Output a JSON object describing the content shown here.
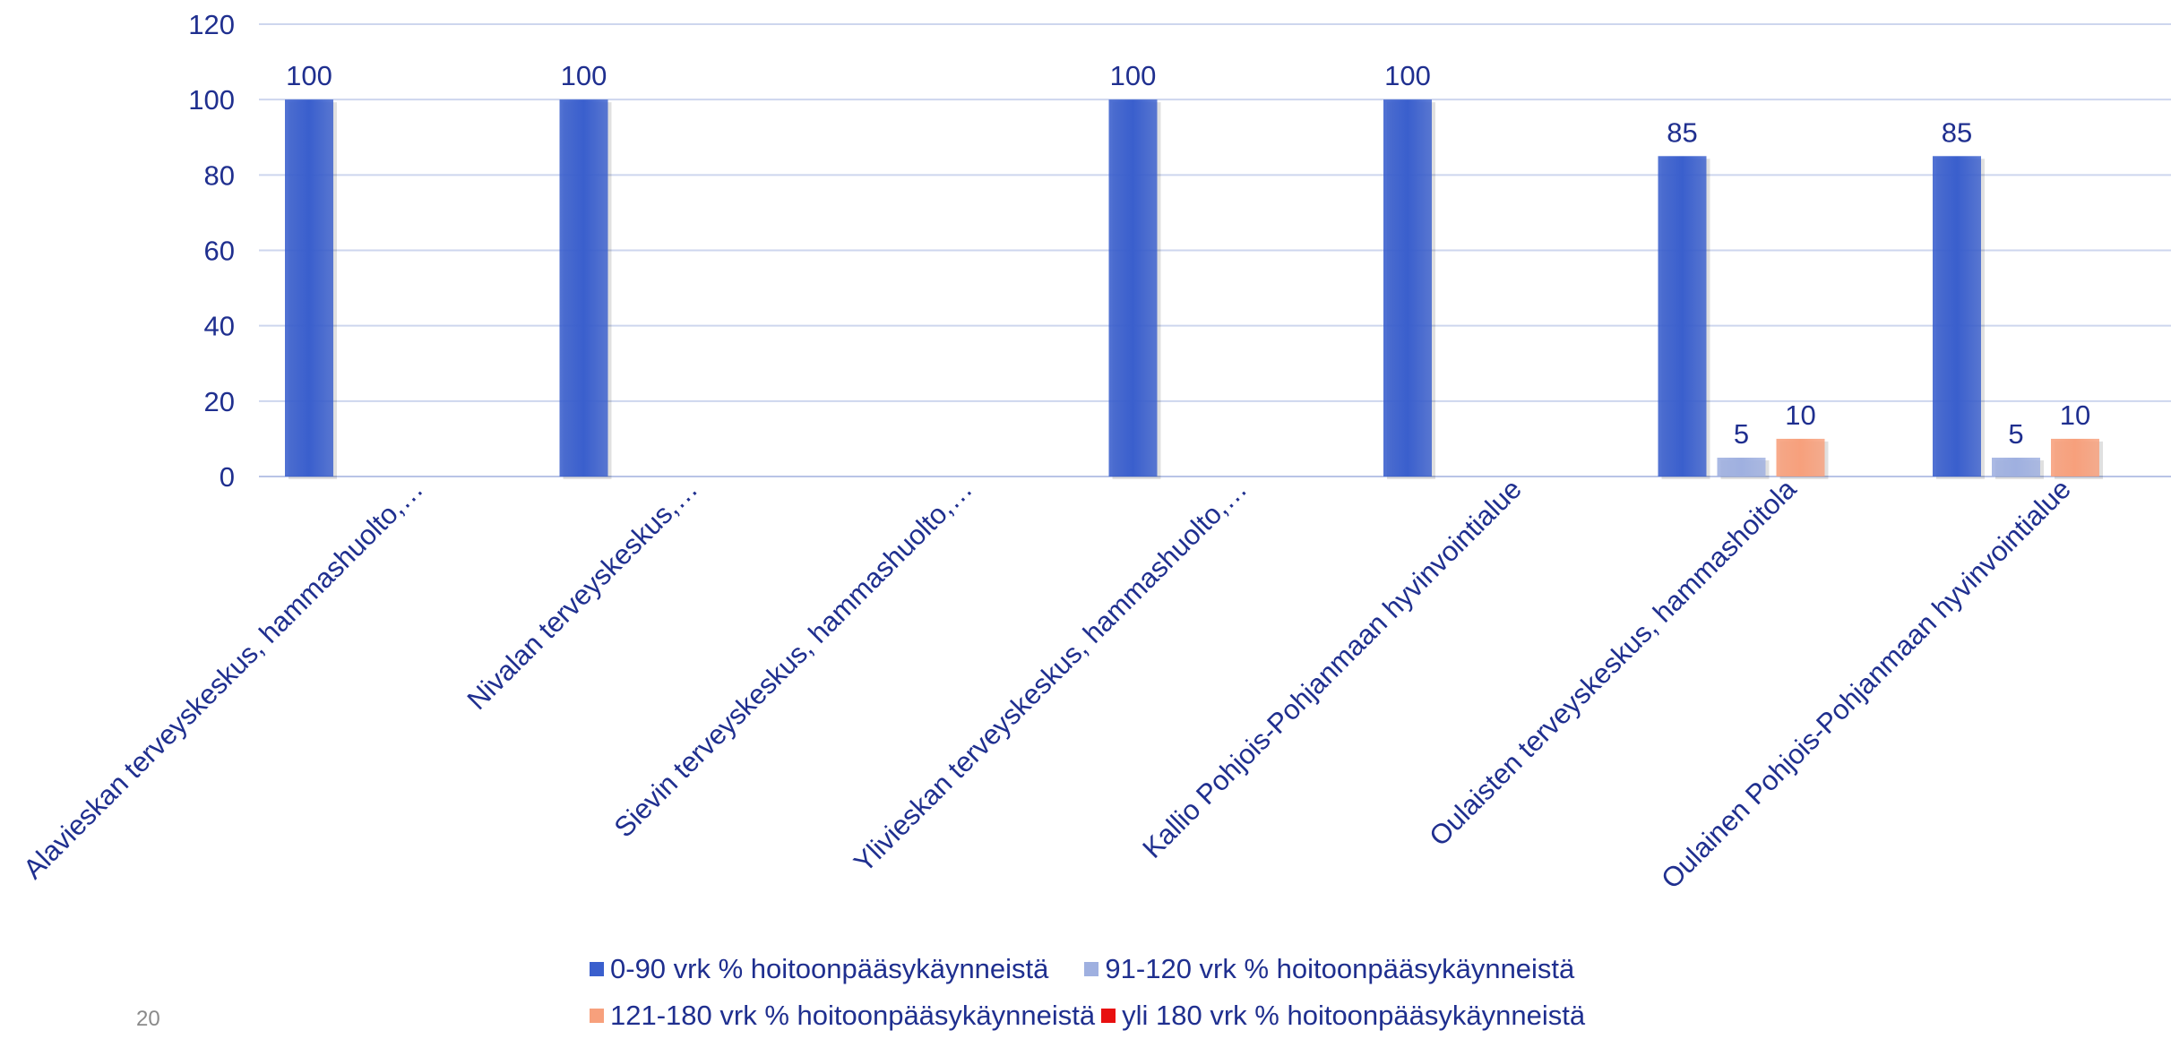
{
  "chart_data": {
    "type": "bar",
    "categories": [
      "Alavieskan terveyskeskus, hammashuolto,…",
      "Nivalan terveyskeskus,…",
      "Sievin terveyskeskus, hammashuolto,…",
      "Ylivieskan terveyskeskus, hammashuolto,…",
      "Kallio Pohjois-Pohjanmaan hyvinvointialue",
      "Oulaisten terveyskeskus, hammashoitola",
      "Oulainen Pohjois-Pohjanmaan hyvinvointialue"
    ],
    "series": [
      {
        "name": "0-90 vrk % hoitoonpääsykäynneistä",
        "color": "#3a5fcd",
        "values": [
          100,
          100,
          null,
          100,
          100,
          85,
          85
        ]
      },
      {
        "name": "91-120 vrk % hoitoonpääsykäynneistä",
        "color": "#9fb0e0",
        "values": [
          null,
          null,
          null,
          null,
          null,
          5,
          5
        ]
      },
      {
        "name": "121-180 vrk % hoitoonpääsykäynneistä",
        "color": "#f7a07c",
        "values": [
          null,
          null,
          null,
          null,
          null,
          10,
          10
        ]
      },
      {
        "name": "yli 180 vrk % hoitoonpääsykäynneistä",
        "color": "#e81010",
        "values": [
          null,
          null,
          null,
          null,
          null,
          null,
          null
        ]
      }
    ],
    "yticks": [
      0,
      20,
      40,
      60,
      80,
      100,
      120
    ],
    "ylim": [
      0,
      120
    ],
    "grid": true,
    "legend_position": "bottom",
    "title": "",
    "xlabel": "",
    "ylabel": ""
  },
  "page_number": "20"
}
